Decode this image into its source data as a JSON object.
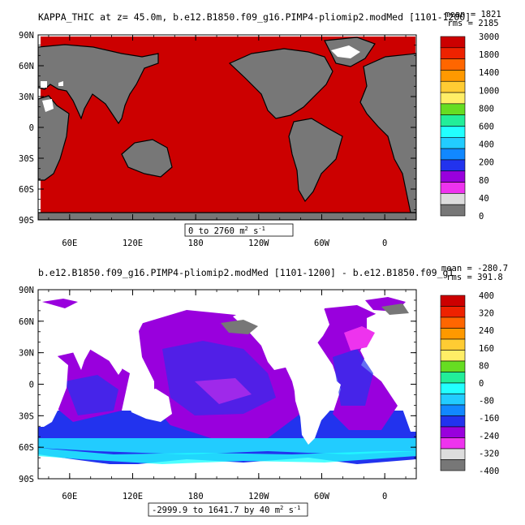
{
  "panels": [
    {
      "title": "KAPPA_THIC at z=  45.0m, b.e12.B1850.f09_g16.PIMP4-pliomip2.modMed [1101-1200]",
      "mean_label": "mean = 1821",
      "rms_label": "rms = 2185",
      "range_label_prefix": "0 to 2760 m",
      "range_label_unit_exp": "2",
      "range_label_suffix": " s",
      "range_label_suffix_exp": "-1"
    },
    {
      "title": "b.e12.B1850.f09_g16.PIMP4-pliomip2.modMed [1101-1200] - b.e12.B1850.f09_g1",
      "mean_label": "mean = -280.7",
      "rms_label": "rms = 391.8",
      "range_label_prefix": "-2999.9 to 1641.7 by 40 m",
      "range_label_unit_exp": "2",
      "range_label_suffix": " s",
      "range_label_suffix_exp": "-1"
    }
  ],
  "chart_data": [
    {
      "type": "heatmap",
      "title": "KAPPA_THIC at z=  45.0m, b.e12.B1850.f09_g16.PIMP4-pliomip2.modMed [1101-1200]",
      "x_ticks": [
        "60E",
        "120E",
        "180",
        "120W",
        "60W",
        "0"
      ],
      "x_tick_values": [
        60,
        120,
        180,
        240,
        300,
        360
      ],
      "y_ticks": [
        "90N",
        "60N",
        "30N",
        "0",
        "30S",
        "60S",
        "90S"
      ],
      "y_tick_values": [
        90,
        60,
        30,
        0,
        -30,
        -60,
        -90
      ],
      "xlim": [
        30,
        390
      ],
      "ylim": [
        -90,
        90
      ],
      "colorbar": {
        "labels": [
          "3000",
          "1800",
          "1400",
          "1000",
          "800",
          "600",
          "400",
          "200",
          "80",
          "40",
          "0"
        ],
        "colors": [
          "#cc0000",
          "#ee2200",
          "#ff6600",
          "#ff9900",
          "#ffcc33",
          "#ffee66",
          "#66dd22",
          "#22ee99",
          "#22ffff",
          "#22ccff",
          "#1188ff",
          "#2233ee",
          "#9900dd",
          "#ee33ee",
          "#dddddd",
          "#777777"
        ]
      },
      "ocean_value": 3000
    },
    {
      "type": "heatmap",
      "title": "b.e12.B1850.f09_g16.PIMP4-pliomip2.modMed [1101-1200] - b.e12.B1850.f09_g1",
      "x_ticks": [
        "60E",
        "120E",
        "180",
        "120W",
        "60W",
        "0"
      ],
      "x_tick_values": [
        60,
        120,
        180,
        240,
        300,
        360
      ],
      "y_ticks": [
        "90N",
        "60N",
        "30N",
        "0",
        "30S",
        "60S",
        "90S"
      ],
      "y_tick_values": [
        90,
        60,
        30,
        0,
        -30,
        -60,
        -90
      ],
      "xlim": [
        30,
        390
      ],
      "ylim": [
        -90,
        90
      ],
      "colorbar": {
        "labels": [
          "400",
          "320",
          "240",
          "160",
          "80",
          "0",
          "-80",
          "-160",
          "-240",
          "-320",
          "-400"
        ],
        "colors": [
          "#cc0000",
          "#ee2200",
          "#ff6600",
          "#ff9900",
          "#ffcc33",
          "#ffee66",
          "#66dd22",
          "#22ee99",
          "#22ffff",
          "#22ccff",
          "#1188ff",
          "#2233ee",
          "#9900dd",
          "#ee33ee",
          "#dddddd",
          "#777777"
        ]
      }
    }
  ]
}
